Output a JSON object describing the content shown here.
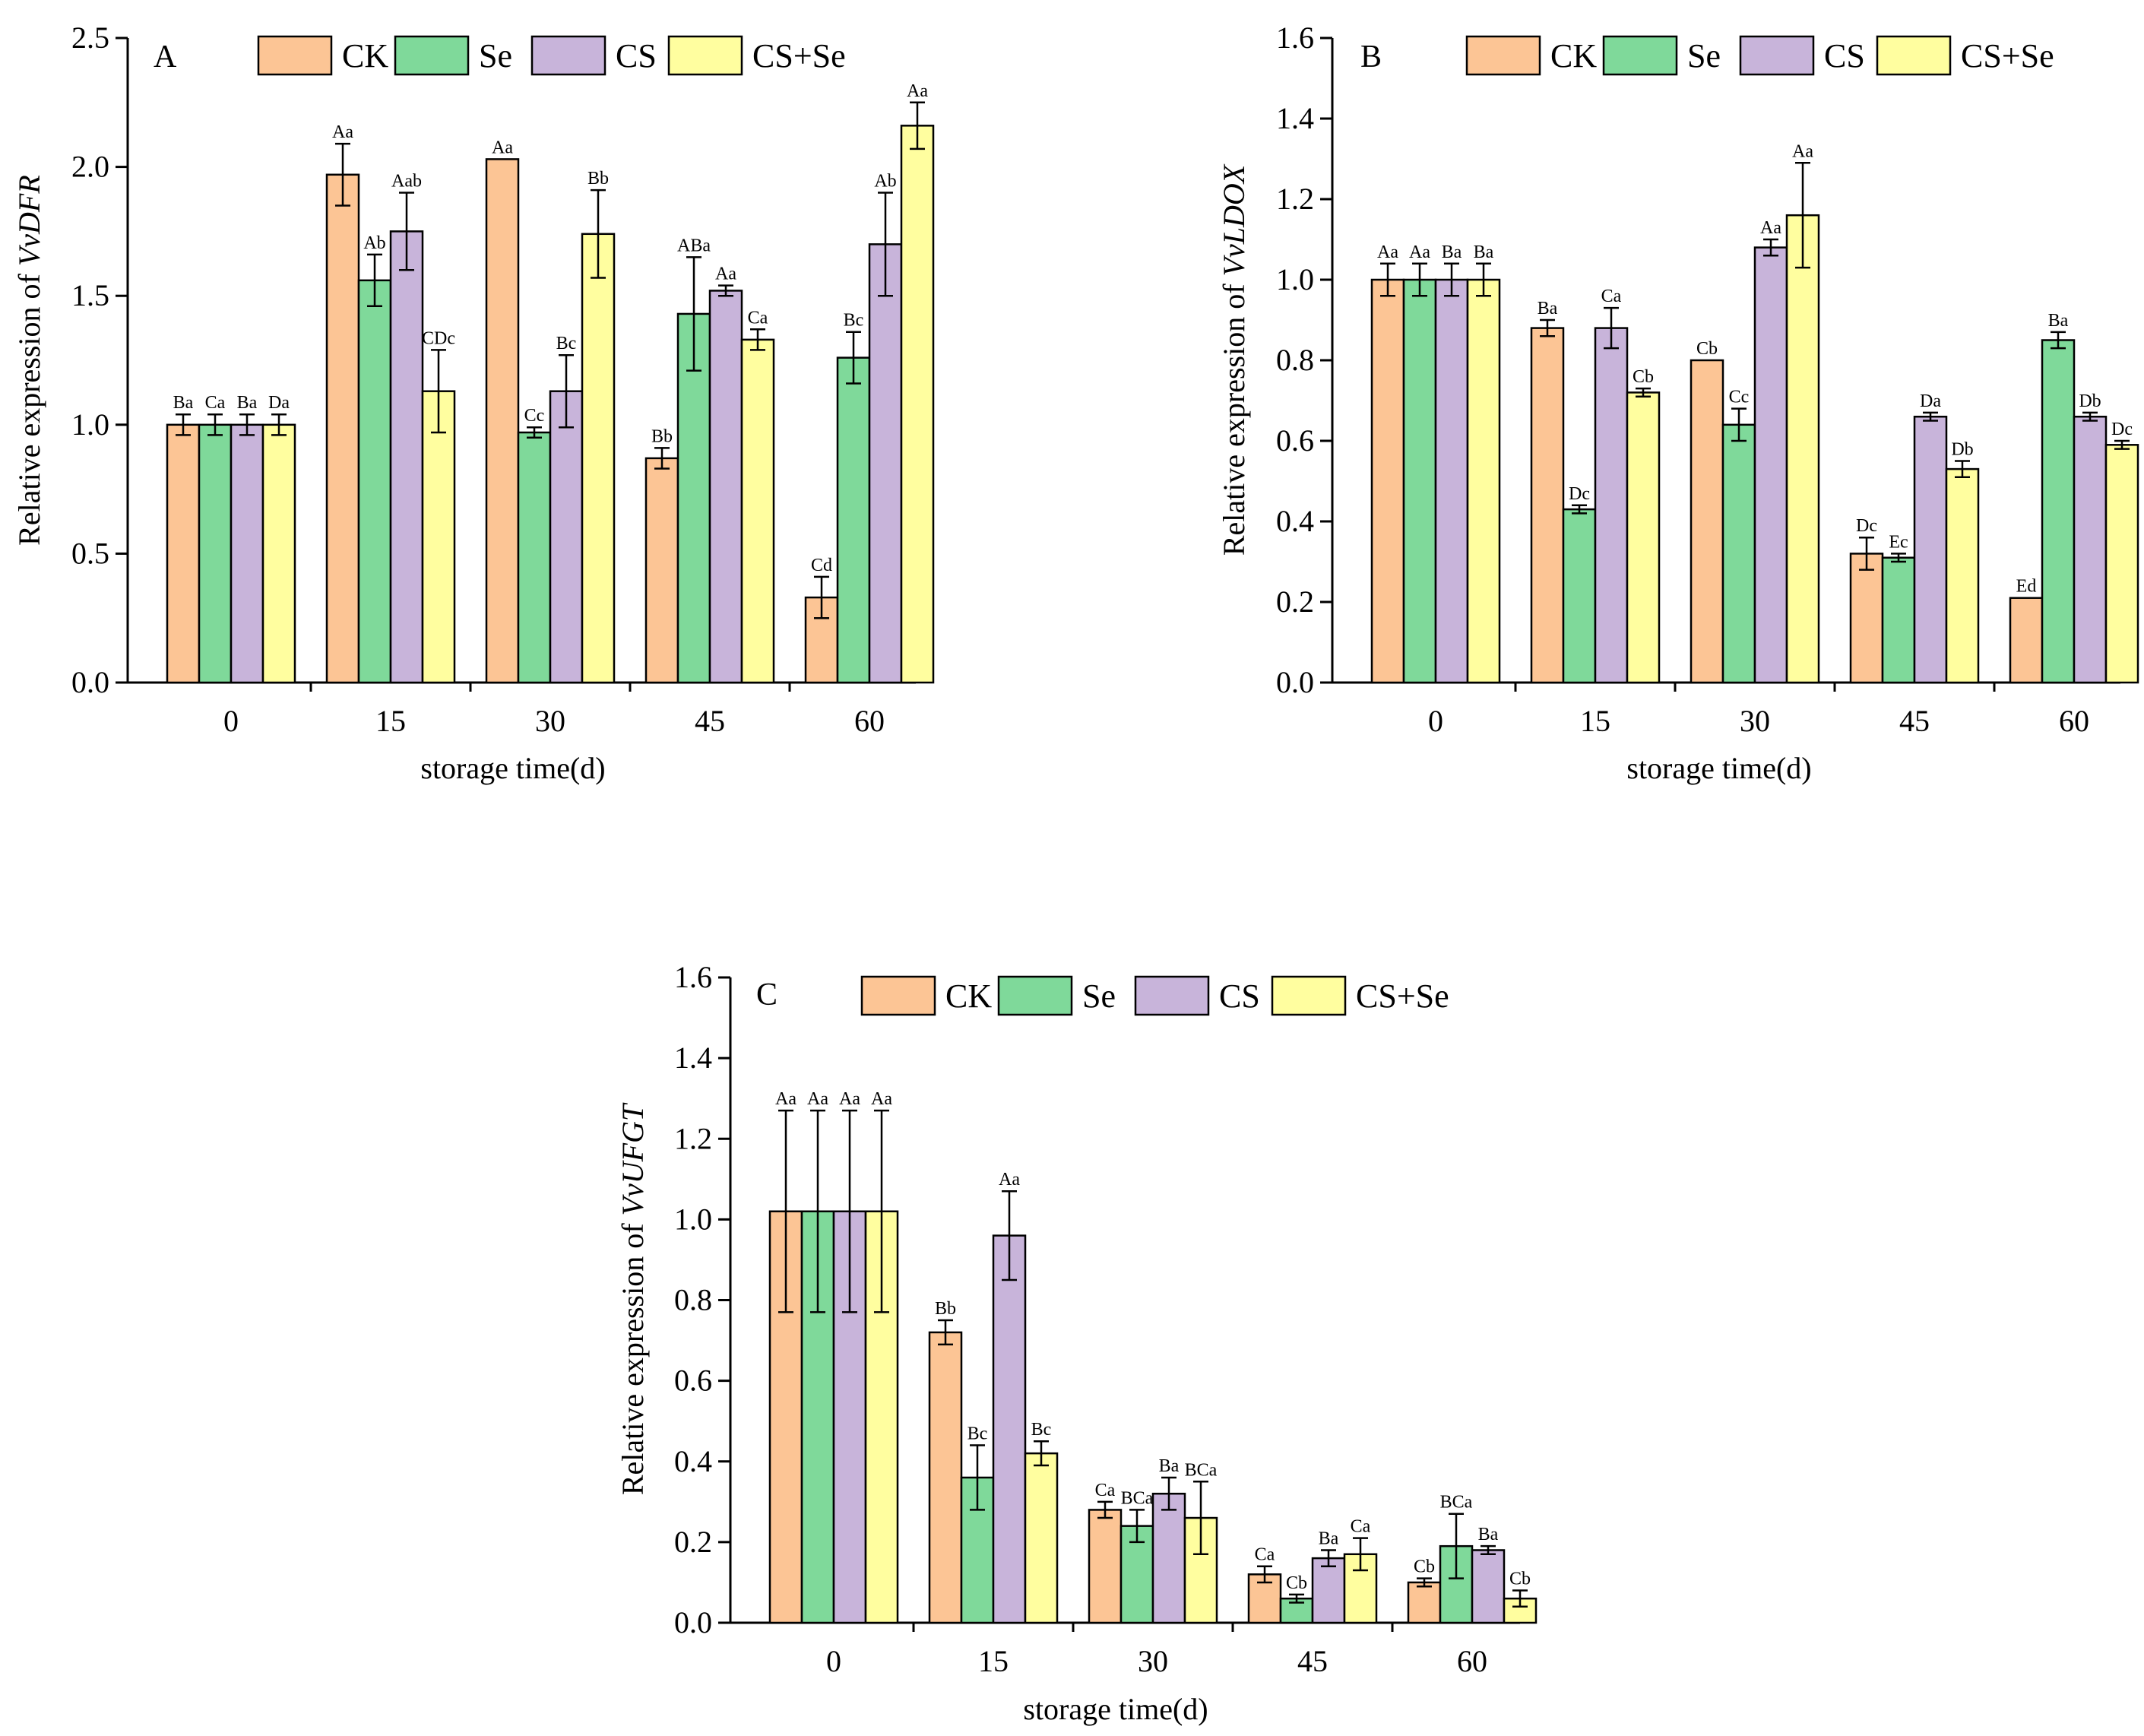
{
  "figure": {
    "series_names": [
      "CK",
      "Se",
      "CS",
      "CS+Se"
    ],
    "colors": {
      "CK": "#FCC595",
      "Se": "#7FD99A",
      "CS": "#C8B4DA",
      "CS+Se": "#FFFE9F"
    }
  },
  "chart_data": [
    {
      "type": "bar",
      "panel": "A",
      "categories": [
        "0",
        "15",
        "30",
        "45",
        "60"
      ],
      "xlabel": "storage time(d)",
      "ylabel_prefix": "Relative expression of ",
      "ylabel_gene": "VvDFR",
      "ylim": [
        0,
        2.5
      ],
      "yticks": [
        "0.0",
        "0.5",
        "1.0",
        "1.5",
        "2.0",
        "2.5"
      ],
      "legend": [
        "CK",
        "Se",
        "CS",
        "CS+Se"
      ],
      "legend_position": "top",
      "series": [
        {
          "name": "CK",
          "values": [
            1.0,
            1.97,
            2.03,
            0.87,
            0.33
          ],
          "errors": [
            0.04,
            0.12,
            0.0,
            0.04,
            0.08
          ],
          "labels": [
            "Ba",
            "Aa",
            "Aa",
            "Bb",
            "Cd"
          ]
        },
        {
          "name": "Se",
          "values": [
            1.0,
            1.56,
            0.97,
            1.43,
            1.26
          ],
          "errors": [
            0.04,
            0.1,
            0.02,
            0.22,
            0.1
          ],
          "labels": [
            "Ca",
            "Ab",
            "Cc",
            "ABa",
            "Bc"
          ]
        },
        {
          "name": "CS",
          "values": [
            1.0,
            1.75,
            1.13,
            1.52,
            1.7
          ],
          "errors": [
            0.04,
            0.15,
            0.14,
            0.02,
            0.2
          ],
          "labels": [
            "Ba",
            "Aab",
            "Bc",
            "Aa",
            "Ab"
          ]
        },
        {
          "name": "CS+Se",
          "values": [
            1.0,
            1.13,
            1.74,
            1.33,
            2.16
          ],
          "errors": [
            0.04,
            0.16,
            0.17,
            0.04,
            0.09
          ],
          "labels": [
            "Da",
            "CDc",
            "Bb",
            "Ca",
            "Aa"
          ]
        }
      ]
    },
    {
      "type": "bar",
      "panel": "B",
      "categories": [
        "0",
        "15",
        "30",
        "45",
        "60"
      ],
      "xlabel": "storage time(d)",
      "ylabel_prefix": "Relative expression of ",
      "ylabel_gene": "VvLDOX",
      "ylim": [
        0,
        1.6
      ],
      "yticks": [
        "0.0",
        "0.2",
        "0.4",
        "0.6",
        "0.8",
        "1.0",
        "1.2",
        "1.4",
        "1.6"
      ],
      "legend": [
        "CK",
        "Se",
        "CS",
        "CS+Se"
      ],
      "legend_position": "top",
      "series": [
        {
          "name": "CK",
          "values": [
            1.0,
            0.88,
            0.8,
            0.32,
            0.21
          ],
          "errors": [
            0.04,
            0.02,
            0.0,
            0.04,
            0.0
          ],
          "labels": [
            "Aa",
            "Ba",
            "Cb",
            "Dc",
            "Ed"
          ]
        },
        {
          "name": "Se",
          "values": [
            1.0,
            0.43,
            0.64,
            0.31,
            0.85
          ],
          "errors": [
            0.04,
            0.01,
            0.04,
            0.01,
            0.02
          ],
          "labels": [
            "Aa",
            "Dc",
            "Cc",
            "Ec",
            "Ba"
          ]
        },
        {
          "name": "CS",
          "values": [
            1.0,
            0.88,
            1.08,
            0.66,
            0.66
          ],
          "errors": [
            0.04,
            0.05,
            0.02,
            0.01,
            0.01
          ],
          "labels": [
            "Ba",
            "Ca",
            "Aa",
            "Da",
            "Db"
          ]
        },
        {
          "name": "CS+Se",
          "values": [
            1.0,
            0.72,
            1.16,
            0.53,
            0.59
          ],
          "errors": [
            0.04,
            0.01,
            0.13,
            0.02,
            0.01
          ],
          "labels": [
            "Ba",
            "Cb",
            "Aa",
            "Db",
            "Dc"
          ]
        }
      ]
    },
    {
      "type": "bar",
      "panel": "C",
      "categories": [
        "0",
        "15",
        "30",
        "45",
        "60"
      ],
      "xlabel": "storage time(d)",
      "ylabel_prefix": "Relative expression of ",
      "ylabel_gene": "VvUFGT",
      "ylim": [
        0,
        1.6
      ],
      "yticks": [
        "0.0",
        "0.2",
        "0.4",
        "0.6",
        "0.8",
        "1.0",
        "1.2",
        "1.4",
        "1.6"
      ],
      "legend": [
        "CK",
        "Se",
        "CS",
        "CS+Se"
      ],
      "legend_position": "top",
      "series": [
        {
          "name": "CK",
          "values": [
            1.02,
            0.72,
            0.28,
            0.12,
            0.1
          ],
          "errors": [
            0.25,
            0.03,
            0.02,
            0.02,
            0.01
          ],
          "labels": [
            "Aa",
            "Bb",
            "Ca",
            "Ca",
            "Cb"
          ]
        },
        {
          "name": "Se",
          "values": [
            1.02,
            0.36,
            0.24,
            0.06,
            0.19
          ],
          "errors": [
            0.25,
            0.08,
            0.04,
            0.01,
            0.08
          ],
          "labels": [
            "Aa",
            "Bc",
            "BCa",
            "Cb",
            "BCa"
          ]
        },
        {
          "name": "CS",
          "values": [
            1.02,
            0.96,
            0.32,
            0.16,
            0.18
          ],
          "errors": [
            0.25,
            0.11,
            0.04,
            0.02,
            0.01
          ],
          "labels": [
            "Aa",
            "Aa",
            "Ba",
            "Ba",
            "Ba"
          ]
        },
        {
          "name": "CS+Se",
          "values": [
            1.02,
            0.42,
            0.26,
            0.17,
            0.06
          ],
          "errors": [
            0.25,
            0.03,
            0.09,
            0.04,
            0.02
          ],
          "labels": [
            "Aa",
            "Bc",
            "BCa",
            "Ca",
            "Cb"
          ]
        }
      ]
    }
  ]
}
